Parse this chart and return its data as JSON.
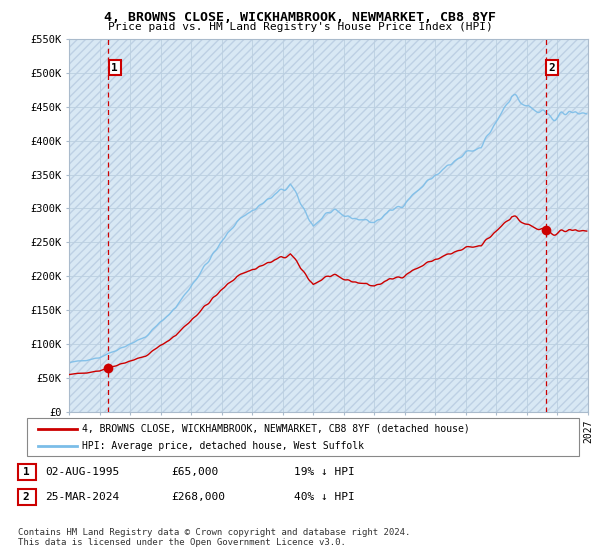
{
  "title": "4, BROWNS CLOSE, WICKHAMBROOK, NEWMARKET, CB8 8YF",
  "subtitle": "Price paid vs. HM Land Registry's House Price Index (HPI)",
  "ylim": [
    0,
    550000
  ],
  "yticks": [
    0,
    50000,
    100000,
    150000,
    200000,
    250000,
    300000,
    350000,
    400000,
    450000,
    500000,
    550000
  ],
  "ytick_labels": [
    "£0",
    "£50K",
    "£100K",
    "£150K",
    "£200K",
    "£250K",
    "£300K",
    "£350K",
    "£400K",
    "£450K",
    "£500K",
    "£550K"
  ],
  "legend_line1": "4, BROWNS CLOSE, WICKHAMBROOK, NEWMARKET, CB8 8YF (detached house)",
  "legend_line2": "HPI: Average price, detached house, West Suffolk",
  "annotation1_label": "1",
  "annotation1_date": "02-AUG-1995",
  "annotation1_price": "£65,000",
  "annotation1_hpi": "19% ↓ HPI",
  "annotation2_label": "2",
  "annotation2_date": "25-MAR-2024",
  "annotation2_price": "£268,000",
  "annotation2_hpi": "40% ↓ HPI",
  "copyright": "Contains HM Land Registry data © Crown copyright and database right 2024.\nThis data is licensed under the Open Government Licence v3.0.",
  "sale1_year": 1995.58,
  "sale1_price": 65000,
  "sale2_year": 2024.23,
  "sale2_price": 268000,
  "hpi_color": "#7BBDE8",
  "price_color": "#CC0000",
  "bg_color": "#D8E8F4",
  "hatch_color": "#BDD0E4",
  "grid_color": "#BBCFE0"
}
